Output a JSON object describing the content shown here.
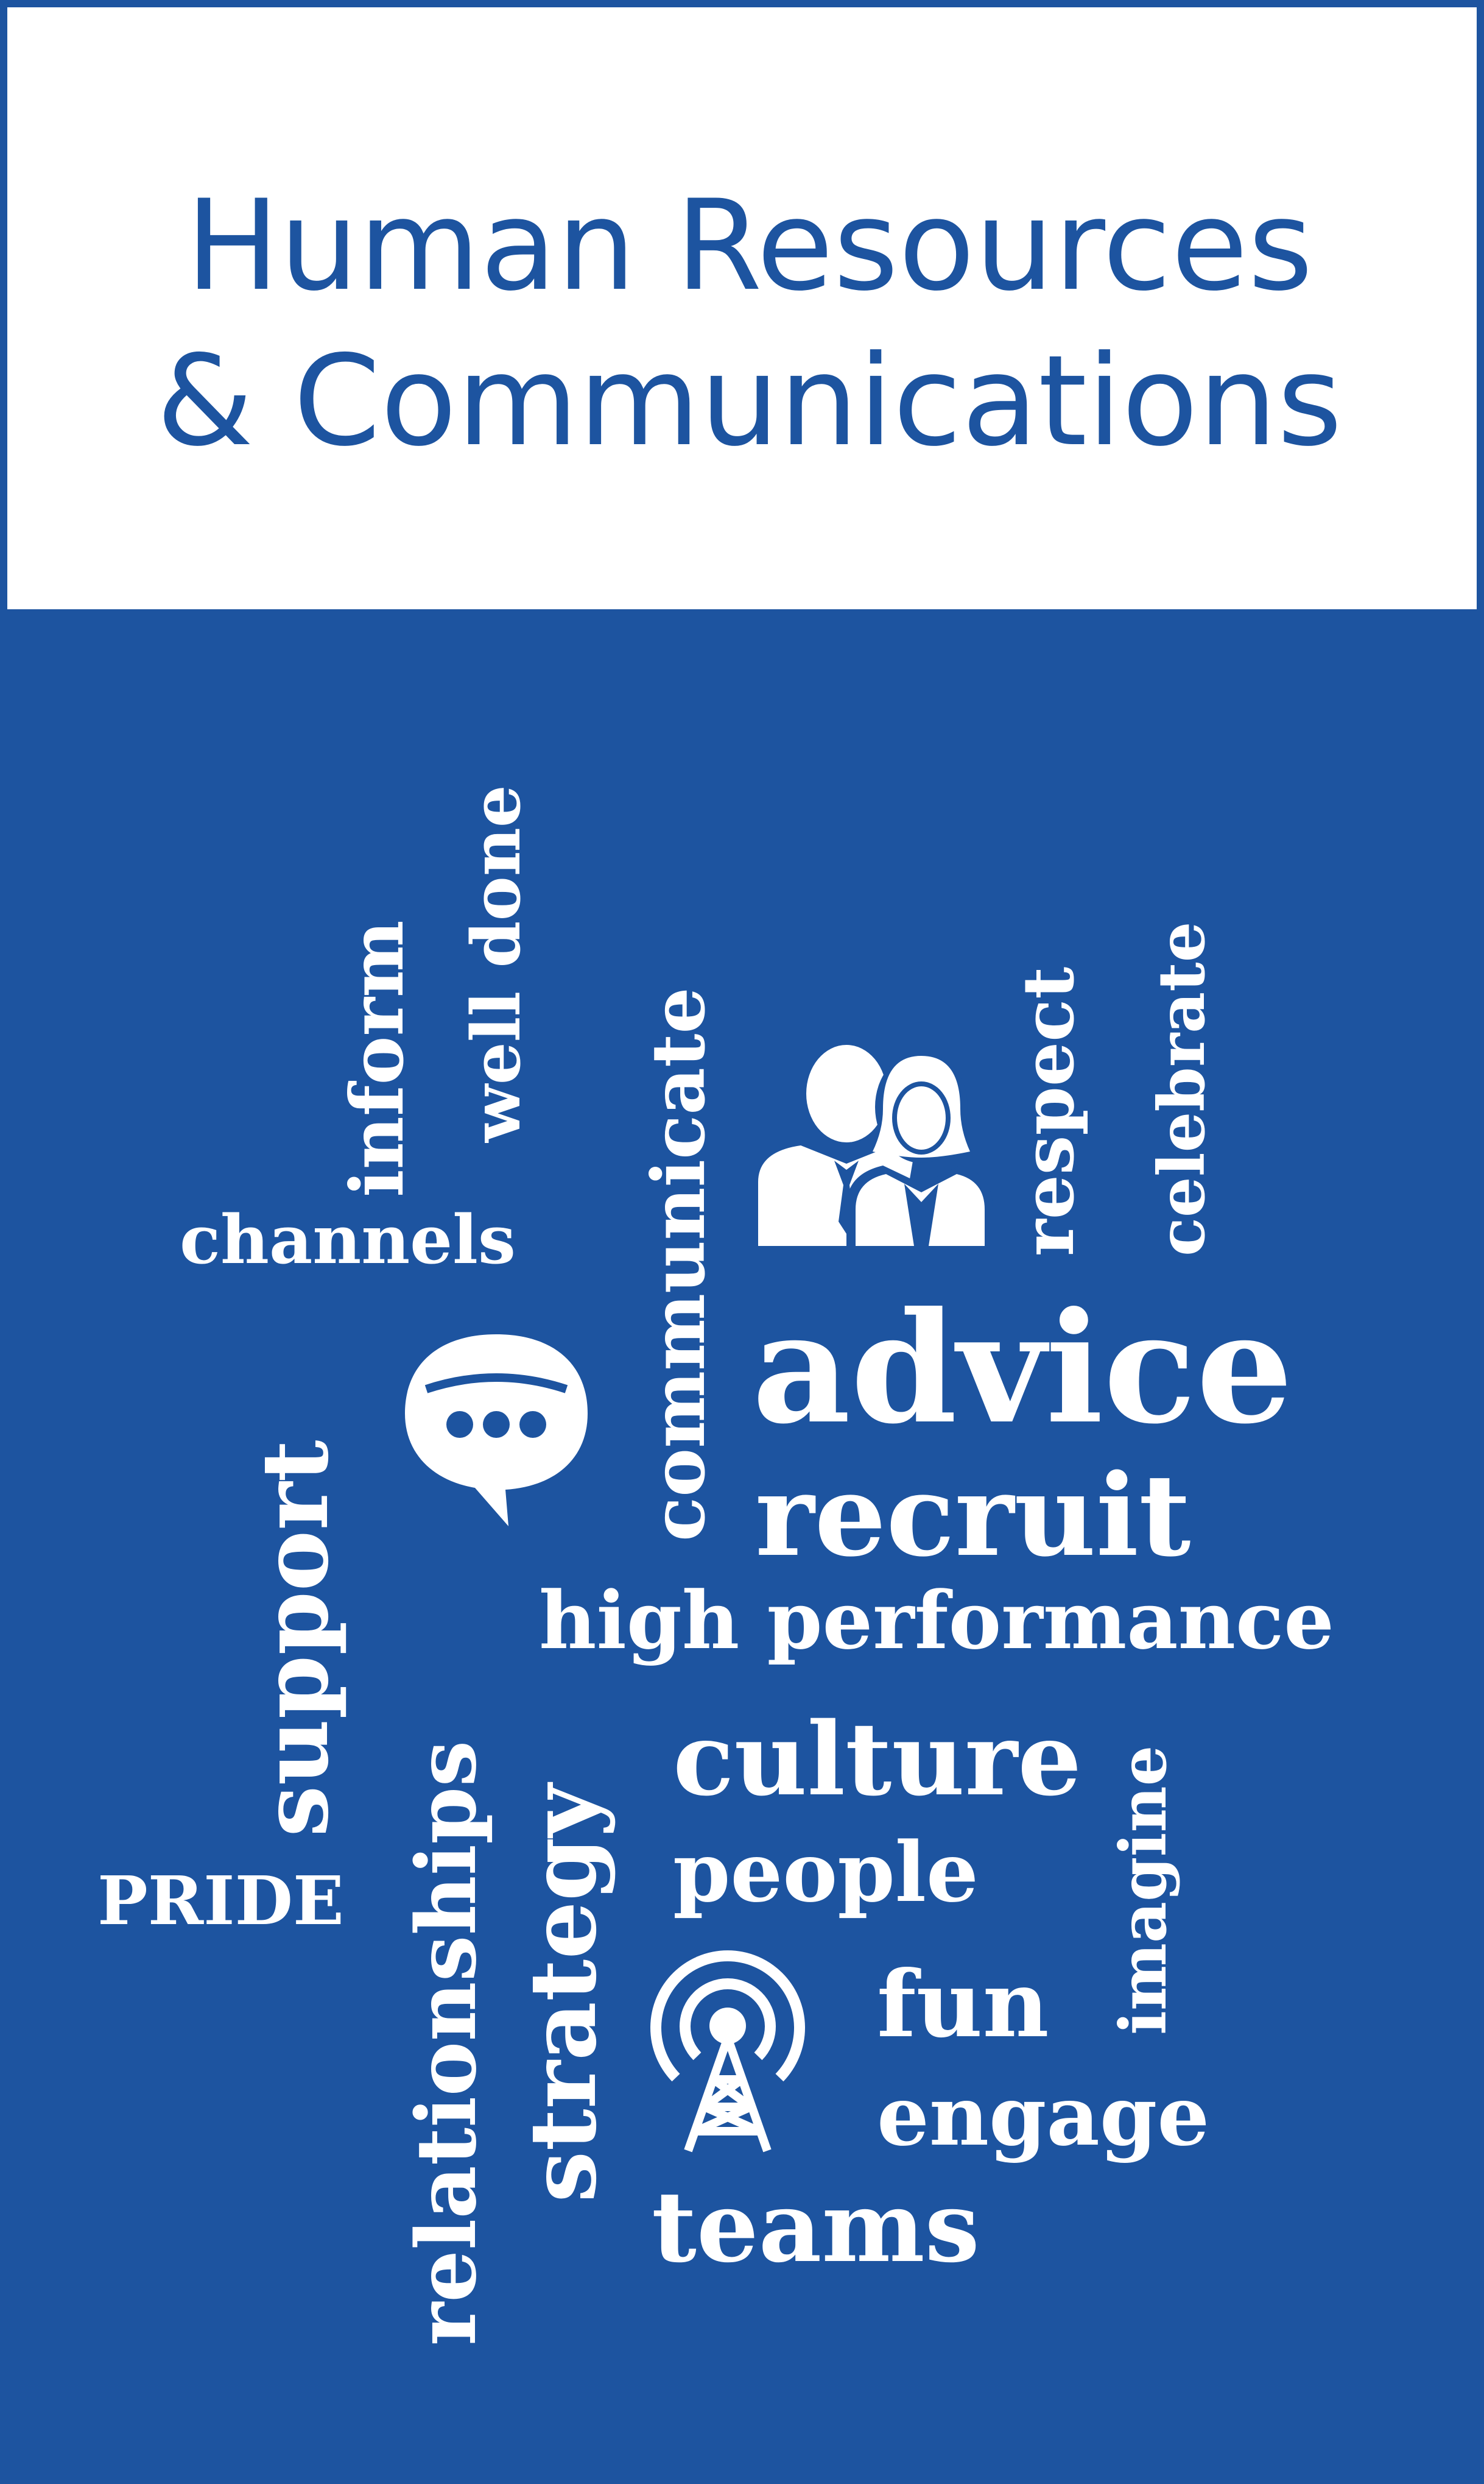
{
  "header": {
    "title_line1": "Human Resources",
    "title_line2": "& Communications"
  },
  "colors": {
    "brand_blue": "#1d54a0",
    "text_on_blue": "#ffffff"
  },
  "word_cloud": {
    "inform": "inform",
    "well_done": "well done",
    "communicate": "communicate",
    "respect": "respect",
    "celebrate": "celebrate",
    "channels": "channels",
    "advice": "advice",
    "recruit": "recruit",
    "support": "support",
    "relationships": "relationships",
    "high_performance": "high performance",
    "strategy": "strategy",
    "culture": "culture",
    "people": "people",
    "imagine": "imagine",
    "pride": "PRIDE",
    "fun": "fun",
    "engage": "engage",
    "teams": "teams"
  },
  "icons": [
    "people-icon",
    "chat-bubble-icon",
    "broadcast-tower-icon"
  ]
}
